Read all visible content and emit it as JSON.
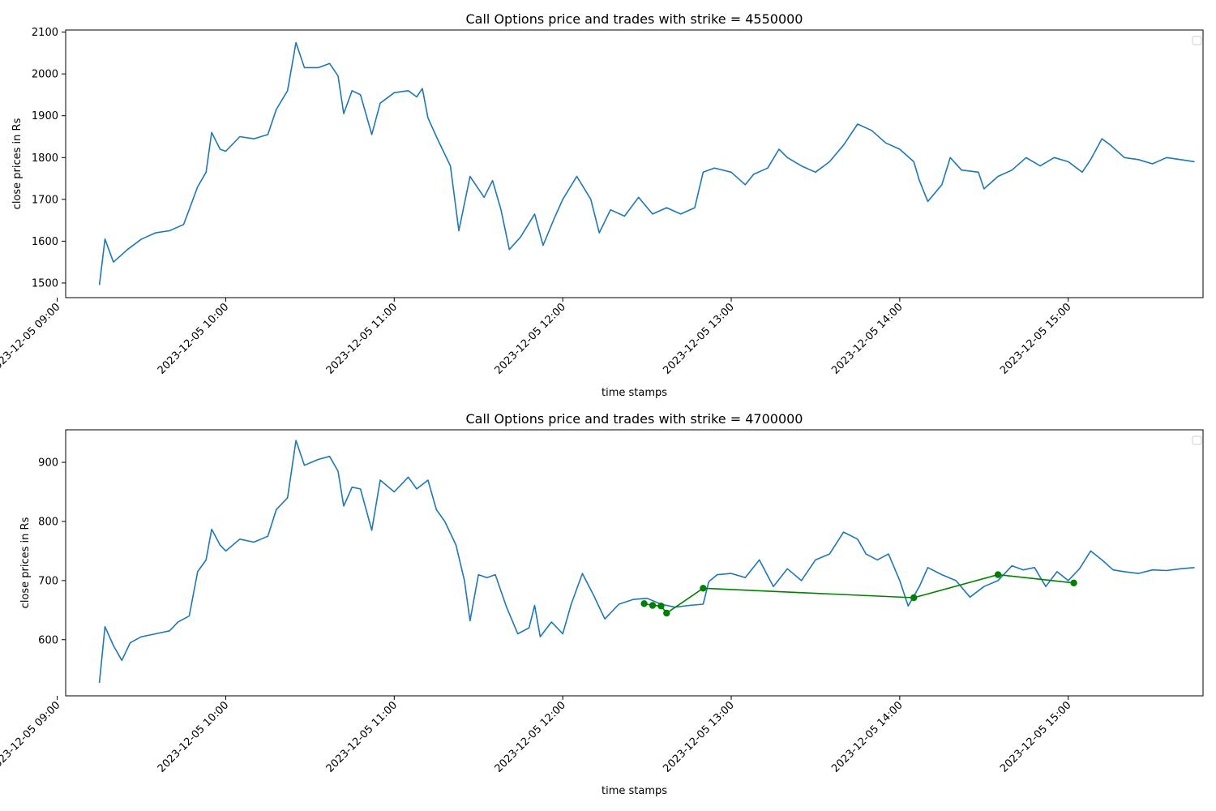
{
  "chart_data": [
    {
      "type": "line",
      "title": "Call Options price and trades with strike = 4550000",
      "xlabel": "time stamps",
      "ylabel": "close prices in Rs",
      "xlim": [
        "2023-12-05 09:03",
        "2023-12-05 15:48"
      ],
      "ylim": [
        1465,
        2105
      ],
      "x_ticks": [
        "2023-12-05 09:00",
        "2023-12-05 10:00",
        "2023-12-05 11:00",
        "2023-12-05 12:00",
        "2023-12-05 13:00",
        "2023-12-05 14:00",
        "2023-12-05 15:00"
      ],
      "y_ticks": [
        1500,
        1600,
        1700,
        1800,
        1900,
        2000,
        2100
      ],
      "legend": "top-right",
      "grid": false,
      "series": [
        {
          "color": "#1f77b4",
          "points": [
            [
              "09:15",
              1495
            ],
            [
              "09:17",
              1605
            ],
            [
              "09:20",
              1550
            ],
            [
              "09:25",
              1580
            ],
            [
              "09:30",
              1605
            ],
            [
              "09:35",
              1620
            ],
            [
              "09:40",
              1625
            ],
            [
              "09:45",
              1640
            ],
            [
              "09:50",
              1730
            ],
            [
              "09:53",
              1765
            ],
            [
              "09:55",
              1860
            ],
            [
              "09:58",
              1820
            ],
            [
              "10:00",
              1815
            ],
            [
              "10:05",
              1850
            ],
            [
              "10:10",
              1845
            ],
            [
              "10:15",
              1855
            ],
            [
              "10:18",
              1915
            ],
            [
              "10:22",
              1960
            ],
            [
              "10:25",
              2075
            ],
            [
              "10:28",
              2015
            ],
            [
              "10:33",
              2015
            ],
            [
              "10:37",
              2025
            ],
            [
              "10:40",
              1995
            ],
            [
              "10:42",
              1905
            ],
            [
              "10:45",
              1960
            ],
            [
              "10:48",
              1950
            ],
            [
              "10:52",
              1855
            ],
            [
              "10:55",
              1930
            ],
            [
              "11:00",
              1955
            ],
            [
              "11:05",
              1960
            ],
            [
              "11:08",
              1945
            ],
            [
              "11:10",
              1965
            ],
            [
              "11:12",
              1895
            ],
            [
              "11:15",
              1850
            ],
            [
              "11:20",
              1780
            ],
            [
              "11:23",
              1625
            ],
            [
              "11:27",
              1755
            ],
            [
              "11:32",
              1705
            ],
            [
              "11:35",
              1745
            ],
            [
              "11:38",
              1675
            ],
            [
              "11:41",
              1580
            ],
            [
              "11:45",
              1610
            ],
            [
              "11:50",
              1665
            ],
            [
              "11:53",
              1590
            ],
            [
              "11:57",
              1655
            ],
            [
              "12:00",
              1700
            ],
            [
              "12:05",
              1755
            ],
            [
              "12:10",
              1700
            ],
            [
              "12:13",
              1620
            ],
            [
              "12:17",
              1675
            ],
            [
              "12:22",
              1660
            ],
            [
              "12:27",
              1705
            ],
            [
              "12:32",
              1665
            ],
            [
              "12:37",
              1680
            ],
            [
              "12:42",
              1665
            ],
            [
              "12:47",
              1680
            ],
            [
              "12:50",
              1765
            ],
            [
              "12:54",
              1775
            ],
            [
              "13:00",
              1765
            ],
            [
              "13:05",
              1735
            ],
            [
              "13:08",
              1760
            ],
            [
              "13:13",
              1775
            ],
            [
              "13:17",
              1820
            ],
            [
              "13:20",
              1800
            ],
            [
              "13:25",
              1780
            ],
            [
              "13:30",
              1765
            ],
            [
              "13:35",
              1790
            ],
            [
              "13:40",
              1830
            ],
            [
              "13:45",
              1880
            ],
            [
              "13:50",
              1865
            ],
            [
              "13:55",
              1835
            ],
            [
              "14:00",
              1820
            ],
            [
              "14:05",
              1790
            ],
            [
              "14:07",
              1745
            ],
            [
              "14:10",
              1695
            ],
            [
              "14:15",
              1735
            ],
            [
              "14:18",
              1800
            ],
            [
              "14:22",
              1770
            ],
            [
              "14:28",
              1765
            ],
            [
              "14:30",
              1725
            ],
            [
              "14:35",
              1755
            ],
            [
              "14:40",
              1770
            ],
            [
              "14:45",
              1800
            ],
            [
              "14:50",
              1780
            ],
            [
              "14:55",
              1800
            ],
            [
              "15:00",
              1790
            ],
            [
              "15:05",
              1765
            ],
            [
              "15:08",
              1795
            ],
            [
              "15:12",
              1845
            ],
            [
              "15:15",
              1830
            ],
            [
              "15:20",
              1800
            ],
            [
              "15:25",
              1795
            ],
            [
              "15:30",
              1785
            ],
            [
              "15:35",
              1800
            ],
            [
              "15:40",
              1795
            ],
            [
              "15:45",
              1790
            ]
          ]
        }
      ]
    },
    {
      "type": "line",
      "title": "Call Options price and trades with strike = 4700000",
      "xlabel": "time stamps",
      "ylabel": "close prices in Rs",
      "xlim": [
        "2023-12-05 09:03",
        "2023-12-05 15:48"
      ],
      "ylim": [
        505,
        955
      ],
      "x_ticks": [
        "2023-12-05 09:00",
        "2023-12-05 10:00",
        "2023-12-05 11:00",
        "2023-12-05 12:00",
        "2023-12-05 13:00",
        "2023-12-05 14:00",
        "2023-12-05 15:00"
      ],
      "y_ticks": [
        600,
        700,
        800,
        900
      ],
      "legend": "top-right",
      "grid": false,
      "series": [
        {
          "color": "#1f77b4",
          "points": [
            [
              "09:15",
              527
            ],
            [
              "09:17",
              622
            ],
            [
              "09:20",
              590
            ],
            [
              "09:23",
              565
            ],
            [
              "09:26",
              595
            ],
            [
              "09:30",
              605
            ],
            [
              "09:35",
              610
            ],
            [
              "09:40",
              615
            ],
            [
              "09:43",
              630
            ],
            [
              "09:47",
              640
            ],
            [
              "09:50",
              715
            ],
            [
              "09:53",
              735
            ],
            [
              "09:55",
              787
            ],
            [
              "09:58",
              760
            ],
            [
              "10:00",
              750
            ],
            [
              "10:05",
              770
            ],
            [
              "10:10",
              765
            ],
            [
              "10:15",
              775
            ],
            [
              "10:18",
              820
            ],
            [
              "10:22",
              840
            ],
            [
              "10:25",
              937
            ],
            [
              "10:28",
              895
            ],
            [
              "10:33",
              905
            ],
            [
              "10:37",
              910
            ],
            [
              "10:40",
              885
            ],
            [
              "10:42",
              826
            ],
            [
              "10:45",
              858
            ],
            [
              "10:48",
              855
            ],
            [
              "10:52",
              785
            ],
            [
              "10:55",
              870
            ],
            [
              "11:00",
              850
            ],
            [
              "11:05",
              875
            ],
            [
              "11:08",
              855
            ],
            [
              "11:12",
              870
            ],
            [
              "11:15",
              820
            ],
            [
              "11:18",
              800
            ],
            [
              "11:22",
              760
            ],
            [
              "11:25",
              700
            ],
            [
              "11:27",
              632
            ],
            [
              "11:30",
              710
            ],
            [
              "11:33",
              705
            ],
            [
              "11:36",
              710
            ],
            [
              "11:40",
              655
            ],
            [
              "11:44",
              610
            ],
            [
              "11:48",
              620
            ],
            [
              "11:50",
              658
            ],
            [
              "11:52",
              605
            ],
            [
              "11:56",
              630
            ],
            [
              "12:00",
              610
            ],
            [
              "12:03",
              660
            ],
            [
              "12:07",
              712
            ],
            [
              "12:11",
              675
            ],
            [
              "12:15",
              635
            ],
            [
              "12:20",
              660
            ],
            [
              "12:25",
              668
            ],
            [
              "12:30",
              670
            ],
            [
              "12:35",
              660
            ],
            [
              "12:40",
              655
            ],
            [
              "12:45",
              658
            ],
            [
              "12:50",
              660
            ],
            [
              "12:52",
              698
            ],
            [
              "12:55",
              710
            ],
            [
              "13:00",
              712
            ],
            [
              "13:05",
              705
            ],
            [
              "13:10",
              735
            ],
            [
              "13:15",
              690
            ],
            [
              "13:20",
              720
            ],
            [
              "13:25",
              700
            ],
            [
              "13:30",
              735
            ],
            [
              "13:35",
              745
            ],
            [
              "13:40",
              782
            ],
            [
              "13:45",
              770
            ],
            [
              "13:48",
              745
            ],
            [
              "13:52",
              735
            ],
            [
              "13:56",
              745
            ],
            [
              "14:00",
              700
            ],
            [
              "14:03",
              657
            ],
            [
              "14:07",
              690
            ],
            [
              "14:10",
              722
            ],
            [
              "14:15",
              710
            ],
            [
              "14:20",
              700
            ],
            [
              "14:25",
              672
            ],
            [
              "14:30",
              690
            ],
            [
              "14:35",
              700
            ],
            [
              "14:40",
              725
            ],
            [
              "14:44",
              718
            ],
            [
              "14:48",
              722
            ],
            [
              "14:52",
              690
            ],
            [
              "14:56",
              715
            ],
            [
              "15:00",
              700
            ],
            [
              "15:04",
              720
            ],
            [
              "15:08",
              750
            ],
            [
              "15:12",
              735
            ],
            [
              "15:16",
              718
            ],
            [
              "15:20",
              715
            ],
            [
              "15:25",
              712
            ],
            [
              "15:30",
              718
            ],
            [
              "15:35",
              717
            ],
            [
              "15:40",
              720
            ],
            [
              "15:45",
              722
            ]
          ]
        },
        {
          "color": "#008000",
          "role": "trades",
          "points": [
            [
              "12:29",
              661
            ],
            [
              "12:32",
              658
            ],
            [
              "12:35",
              657
            ],
            [
              "12:37",
              645
            ],
            [
              "12:50",
              687
            ],
            [
              "14:05",
              671
            ],
            [
              "14:35",
              710
            ],
            [
              "15:02",
              696
            ]
          ]
        }
      ]
    }
  ]
}
